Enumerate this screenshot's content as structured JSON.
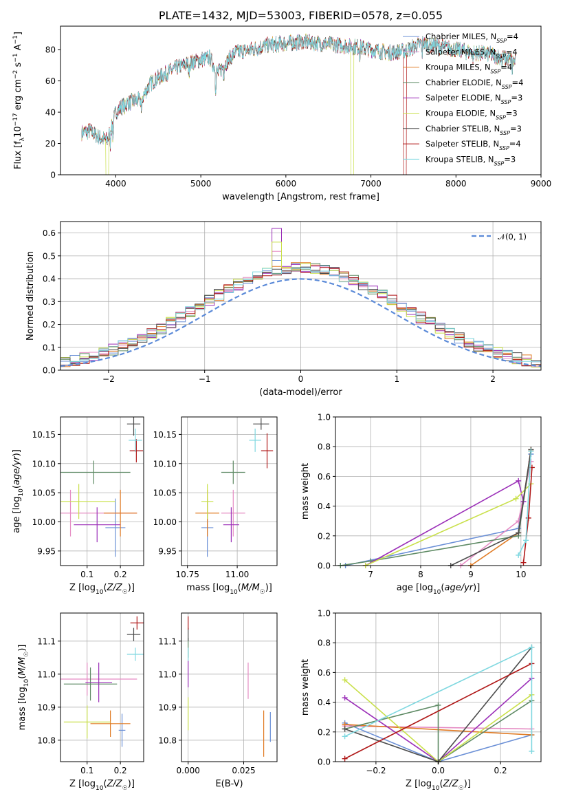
{
  "page": {
    "title": "PLATE=1432, MJD=53003, FIBERID=0578, z=0.055"
  },
  "palette": {
    "Chabrier MILES": "#6a8fd6",
    "Salpeter MILES": "#e58bc3",
    "Kroupa MILES": "#e07b24",
    "Chabrier ELODIE": "#5e8a64",
    "Salpeter ELODIE": "#9b2fb8",
    "Kroupa ELODIE": "#c9e04a",
    "Chabrier STELIB": "#4d4d4d",
    "Salpeter STELIB": "#b01818",
    "Kroupa STELIB": "#7fd8e0"
  },
  "chart_data": [
    {
      "type": "line",
      "title": "PLATE=1432, MJD=53003, FIBERID=0578, z=0.055",
      "xlabel": "wavelength [Angstrom, rest frame]",
      "ylabel": "Flux [fλ10⁻¹⁷ erg cm⁻² s⁻¹ A⁻¹]",
      "xlim": [
        3350,
        9000
      ],
      "ylim": [
        0,
        95
      ],
      "xticks": [
        "4000",
        "5000",
        "6000",
        "7000",
        "8000",
        "9000"
      ],
      "yticks": [
        "0",
        "20",
        "40",
        "60",
        "80"
      ],
      "grid": false,
      "legend_position": "top-right",
      "legend": [
        "Chabrier MILES, N_SSP=4",
        "Salpeter MILES, N_SSP=4",
        "Kroupa MILES, N_SSP=4",
        "Chabrier ELODIE, N_SSP=4",
        "Salpeter ELODIE, N_SSP=3",
        "Kroupa ELODIE, N_SSP=3",
        "Chabrier STELIB, N_SSP=3",
        "Salpeter STELIB, N_SSP=4",
        "Kroupa STELIB, N_SSP=3"
      ],
      "legend_display": [
        [
          "Chabrier MILES, N",
          "SSP",
          "=4"
        ],
        [
          "Salpeter MILES, N",
          "SSP",
          "=4"
        ],
        [
          "Kroupa MILES, N",
          "SSP",
          "=4"
        ],
        [
          "Chabrier ELODIE, N",
          "SSP",
          "=4"
        ],
        [
          "Salpeter ELODIE, N",
          "SSP",
          "=3"
        ],
        [
          "Kroupa ELODIE, N",
          "SSP",
          "=3"
        ],
        [
          "Chabrier STELIB, N",
          "SSP",
          "=3"
        ],
        [
          "Salpeter STELIB, N",
          "SSP",
          "=4"
        ],
        [
          "Kroupa STELIB, N",
          "SSP",
          "=3"
        ]
      ],
      "spectrum_envelope": {
        "x": [
          3600,
          3700,
          3800,
          3900,
          3950,
          4000,
          4100,
          4200,
          4300,
          4400,
          4500,
          4700,
          4900,
          5100,
          5200,
          5400,
          5600,
          5800,
          6000,
          6200,
          6400,
          6600,
          6800,
          7000,
          7200,
          7400,
          7600,
          7800,
          8000,
          8200,
          8400,
          8600,
          8700
        ],
        "y": [
          27,
          28,
          24,
          22,
          30,
          40,
          45,
          47,
          48,
          58,
          62,
          68,
          72,
          75,
          65,
          78,
          80,
          83,
          84,
          85,
          84,
          83,
          82,
          80,
          78,
          79,
          84,
          82,
          80,
          78,
          77,
          74,
          72
        ]
      }
    },
    {
      "type": "histogram",
      "xlabel": "(data-model)/error",
      "ylabel": "Normed distribution",
      "xlim": [
        -2.5,
        2.5
      ],
      "ylim": [
        0,
        0.65
      ],
      "xticks": [
        "−2",
        "−1",
        "0",
        "1",
        "2"
      ],
      "yticks": [
        "0.0",
        "0.1",
        "0.2",
        "0.3",
        "0.4",
        "0.5",
        "0.6"
      ],
      "grid": true,
      "legend_position": "top-right",
      "legend": [
        "N(0,1)"
      ],
      "legend_display": [
        "𝒩(0, 1)"
      ],
      "bins_start": -2.5,
      "bin_width": 0.1,
      "peak_values": {
        "Salpeter ELODIE": 0.62,
        "Kroupa ELODIE": 0.56,
        "Salpeter MILES": 0.52,
        "Chabrier MILES": 0.48
      }
    },
    {
      "type": "scatter",
      "xlabel": "Z [log10(Z/Z☉)]",
      "ylabel": "age [log10(age/yr)]",
      "xlim": [
        0.02,
        0.27
      ],
      "ylim": [
        9.925,
        10.18
      ],
      "xticks": [
        "0.1",
        "0.2"
      ],
      "yticks": [
        "9.95",
        "10.00",
        "10.05",
        "10.10",
        "10.15"
      ],
      "grid": true,
      "points": [
        {
          "model": "Chabrier MILES",
          "x": 0.185,
          "y": 9.99,
          "xerr": 0.03,
          "yerr": 0.05
        },
        {
          "model": "Salpeter MILES",
          "x": 0.05,
          "y": 10.015,
          "xerr": 0.2,
          "yerr": 0.04
        },
        {
          "model": "Kroupa MILES",
          "x": 0.2,
          "y": 10.015,
          "xerr": 0.05,
          "yerr": 0.04
        },
        {
          "model": "Chabrier ELODIE",
          "x": 0.12,
          "y": 10.085,
          "xerr": 0.11,
          "yerr": 0.02
        },
        {
          "model": "Salpeter ELODIE",
          "x": 0.13,
          "y": 9.995,
          "xerr": 0.07,
          "yerr": 0.03
        },
        {
          "model": "Kroupa ELODIE",
          "x": 0.075,
          "y": 10.035,
          "xerr": 0.11,
          "yerr": 0.03
        },
        {
          "model": "Chabrier STELIB",
          "x": 0.24,
          "y": 10.168,
          "xerr": 0.02,
          "yerr": 0.02
        },
        {
          "model": "Salpeter STELIB",
          "x": 0.248,
          "y": 10.122,
          "xerr": 0.02,
          "yerr": 0.02
        },
        {
          "model": "Kroupa STELIB",
          "x": 0.245,
          "y": 10.14,
          "xerr": 0.02,
          "yerr": 0.02
        }
      ]
    },
    {
      "type": "scatter",
      "xlabel": "mass [log10(M/M☉)]",
      "ylabel": "",
      "xlim": [
        10.72,
        11.2
      ],
      "ylim": [
        9.925,
        10.18
      ],
      "xticks": [
        "10.75",
        "11.00"
      ],
      "yticks": [
        "9.95",
        "10.00",
        "10.05",
        "10.10",
        "10.15"
      ],
      "grid": true,
      "points": [
        {
          "model": "Chabrier MILES",
          "x": 10.85,
          "y": 9.99,
          "xerr": 0.03,
          "yerr": 0.05
        },
        {
          "model": "Salpeter MILES",
          "x": 10.98,
          "y": 10.015,
          "xerr": 0.06,
          "yerr": 0.04
        },
        {
          "model": "Kroupa MILES",
          "x": 10.85,
          "y": 10.015,
          "xerr": 0.06,
          "yerr": 0.04
        },
        {
          "model": "Chabrier ELODIE",
          "x": 10.98,
          "y": 10.085,
          "xerr": 0.06,
          "yerr": 0.02
        },
        {
          "model": "Salpeter ELODIE",
          "x": 10.97,
          "y": 9.995,
          "xerr": 0.04,
          "yerr": 0.03
        },
        {
          "model": "Kroupa ELODIE",
          "x": 10.85,
          "y": 10.035,
          "xerr": 0.03,
          "yerr": 0.03
        },
        {
          "model": "Chabrier STELIB",
          "x": 11.12,
          "y": 10.168,
          "xerr": 0.04,
          "yerr": 0.01
        },
        {
          "model": "Salpeter STELIB",
          "x": 11.15,
          "y": 10.122,
          "xerr": 0.03,
          "yerr": 0.03
        },
        {
          "model": "Kroupa STELIB",
          "x": 11.09,
          "y": 10.14,
          "xerr": 0.03,
          "yerr": 0.02
        }
      ]
    },
    {
      "type": "line",
      "xlabel": "age [log10(age/yr)]",
      "ylabel": "mass weight",
      "xlim": [
        6.3,
        10.4
      ],
      "ylim": [
        0,
        1.0
      ],
      "xticks": [
        "7",
        "8",
        "9",
        "10"
      ],
      "yticks": [
        "0.0",
        "0.2",
        "0.4",
        "0.6",
        "0.8",
        "1.0"
      ],
      "grid": true,
      "series": [
        {
          "model": "Chabrier MILES",
          "x": [
            6.5,
            9.95,
            10.2
          ],
          "y": [
            0.0,
            0.25,
            0.75
          ]
        },
        {
          "model": "Salpeter MILES",
          "x": [
            8.8,
            9.95,
            10.2
          ],
          "y": [
            0.0,
            0.3,
            0.7
          ]
        },
        {
          "model": "Kroupa MILES",
          "x": [
            9.0,
            9.95,
            10.2
          ],
          "y": [
            0.0,
            0.22,
            0.78
          ]
        },
        {
          "model": "Chabrier ELODIE",
          "x": [
            6.4,
            7.0,
            9.95,
            10.2
          ],
          "y": [
            0.0,
            0.03,
            0.2,
            0.77
          ]
        },
        {
          "model": "Salpeter ELODIE",
          "x": [
            6.9,
            9.95,
            10.05
          ],
          "y": [
            0.0,
            0.57,
            0.43
          ]
        },
        {
          "model": "Kroupa ELODIE",
          "x": [
            6.9,
            9.9,
            10.2
          ],
          "y": [
            0.0,
            0.45,
            0.55
          ]
        },
        {
          "model": "Chabrier STELIB",
          "x": [
            8.6,
            9.95,
            10.2
          ],
          "y": [
            0.0,
            0.22,
            0.78
          ]
        },
        {
          "model": "Salpeter STELIB",
          "x": [
            10.05,
            10.15,
            10.22
          ],
          "y": [
            0.02,
            0.32,
            0.66
          ]
        },
        {
          "model": "Kroupa STELIB",
          "x": [
            9.95,
            10.1,
            10.2
          ],
          "y": [
            0.07,
            0.17,
            0.77
          ]
        }
      ]
    },
    {
      "type": "scatter",
      "xlabel": "Z [log10(Z/Z☉)]",
      "ylabel": "mass [log10(M/M☉)]",
      "xlim": [
        0.02,
        0.27
      ],
      "ylim": [
        10.735,
        11.185
      ],
      "xticks": [
        "0.1",
        "0.2"
      ],
      "yticks": [
        "10.8",
        "10.9",
        "11.0",
        "11.1"
      ],
      "grid": true,
      "points": [
        {
          "model": "Chabrier MILES",
          "x": 0.205,
          "y": 10.83,
          "xerr": 0.01,
          "yerr": 0.05
        },
        {
          "model": "Salpeter MILES",
          "x": 0.1,
          "y": 10.985,
          "xerr": 0.15,
          "yerr": 0.05
        },
        {
          "model": "Kroupa MILES",
          "x": 0.17,
          "y": 10.85,
          "xerr": 0.06,
          "yerr": 0.04
        },
        {
          "model": "Chabrier ELODIE",
          "x": 0.11,
          "y": 10.97,
          "xerr": 0.08,
          "yerr": 0.05
        },
        {
          "model": "Salpeter ELODIE",
          "x": 0.135,
          "y": 10.975,
          "xerr": 0.04,
          "yerr": 0.06
        },
        {
          "model": "Kroupa ELODIE",
          "x": 0.1,
          "y": 10.855,
          "xerr": 0.07,
          "yerr": 0.05
        },
        {
          "model": "Chabrier STELIB",
          "x": 0.24,
          "y": 11.12,
          "xerr": 0.02,
          "yerr": 0.02
        },
        {
          "model": "Salpeter STELIB",
          "x": 0.25,
          "y": 11.155,
          "xerr": 0.02,
          "yerr": 0.02
        },
        {
          "model": "Kroupa STELIB",
          "x": 0.245,
          "y": 11.06,
          "xerr": 0.025,
          "yerr": 0.02
        }
      ]
    },
    {
      "type": "scatter",
      "xlabel": "E(B-V)",
      "ylabel": "",
      "xlim": [
        -0.003,
        0.04
      ],
      "ylim": [
        10.735,
        11.185
      ],
      "xticks": [
        "0.000",
        "0.025"
      ],
      "yticks": [
        "10.8",
        "10.9",
        "11.0",
        "11.1"
      ],
      "grid": true,
      "points": [
        {
          "model": "Chabrier MILES",
          "x": 0.037,
          "y": 10.84,
          "xerr": 0,
          "yerr": 0.045
        },
        {
          "model": "Salpeter MILES",
          "x": 0.027,
          "y": 10.98,
          "xerr": 0,
          "yerr": 0.055
        },
        {
          "model": "Kroupa MILES",
          "x": 0.034,
          "y": 10.82,
          "xerr": 0,
          "yerr": 0.07
        },
        {
          "model": "Chabrier ELODIE",
          "x": 0.0,
          "y": 11.08,
          "xerr": 0,
          "yerr": 0.03
        },
        {
          "model": "Salpeter ELODIE",
          "x": 0.0,
          "y": 11.0,
          "xerr": 0,
          "yerr": 0.04
        },
        {
          "model": "Kroupa ELODIE",
          "x": 0.0,
          "y": 10.88,
          "xerr": 0,
          "yerr": 0.05
        },
        {
          "model": "Chabrier STELIB",
          "x": 0.0,
          "y": 11.12,
          "xerr": 0,
          "yerr": 0.02
        },
        {
          "model": "Salpeter STELIB",
          "x": 0.0,
          "y": 11.155,
          "xerr": 0,
          "yerr": 0.02
        },
        {
          "model": "Kroupa STELIB",
          "x": 0.0,
          "y": 11.06,
          "xerr": 0,
          "yerr": 0.02
        }
      ]
    },
    {
      "type": "line",
      "xlabel": "Z [log10(Z/Z☉)]",
      "ylabel": "mass weight",
      "xlim": [
        -0.33,
        0.33
      ],
      "ylim": [
        0,
        1.0
      ],
      "xticks": [
        "−0.2",
        "0.0",
        "0.2"
      ],
      "yticks": [
        "0.0",
        "0.2",
        "0.4",
        "0.6",
        "0.8",
        "1.0"
      ],
      "grid": true,
      "series": [
        {
          "model": "Chabrier MILES",
          "x": [
            -0.3,
            0.0,
            0.3
          ],
          "y": [
            0.26,
            0.0,
            0.18
          ]
        },
        {
          "model": "Salpeter MILES",
          "x": [
            -0.3,
            0.3
          ],
          "y": [
            0.24,
            0.22
          ]
        },
        {
          "model": "Kroupa MILES",
          "x": [
            -0.3,
            0.3
          ],
          "y": [
            0.25,
            0.18
          ]
        },
        {
          "model": "Chabrier ELODIE",
          "x": [
            -0.3,
            0.0,
            0.0,
            0.3
          ],
          "y": [
            0.22,
            0.38,
            0.0,
            0.41
          ]
        },
        {
          "model": "Salpeter ELODIE",
          "x": [
            -0.3,
            0.0,
            0.3
          ],
          "y": [
            0.43,
            0.0,
            0.56
          ]
        },
        {
          "model": "Kroupa ELODIE",
          "x": [
            -0.3,
            0.0,
            0.3
          ],
          "y": [
            0.55,
            0.0,
            0.45
          ]
        },
        {
          "model": "Chabrier STELIB",
          "x": [
            -0.3,
            0.0,
            0.3
          ],
          "y": [
            0.22,
            0.0,
            0.77
          ]
        },
        {
          "model": "Salpeter STELIB",
          "x": [
            -0.3,
            0.3
          ],
          "y": [
            0.02,
            0.66
          ]
        },
        {
          "model": "Kroupa STELIB",
          "x": [
            -0.3,
            0.3,
            0.3
          ],
          "y": [
            0.17,
            0.77,
            0.07
          ]
        }
      ]
    }
  ]
}
